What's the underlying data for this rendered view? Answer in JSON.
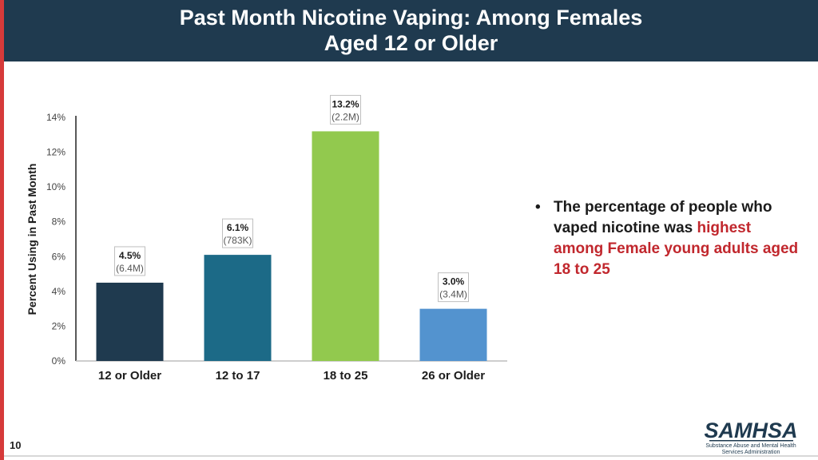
{
  "header": {
    "title_line1": "Past Month Nicotine Vaping: Among Females",
    "title_line2": "Aged 12 or Older"
  },
  "chart_data": {
    "type": "bar",
    "categories": [
      "12 or Older",
      "12 to 17",
      "18 to 25",
      "26 or Older"
    ],
    "values": [
      4.5,
      6.1,
      13.2,
      3.0
    ],
    "value_labels": [
      "4.5%",
      "6.1%",
      "13.2%",
      "3.0%"
    ],
    "count_labels": [
      "(6.4M)",
      "(783K)",
      "(2.2M)",
      "(3.4M)"
    ],
    "colors": [
      "#1f3a4f",
      "#1c6a87",
      "#92c94e",
      "#5393cf"
    ],
    "ylabel": "Percent Using in Past Month",
    "xlabel": "",
    "ylim": [
      0,
      14
    ],
    "yticks": [
      0,
      2,
      4,
      6,
      8,
      10,
      12,
      14
    ],
    "ytick_labels": [
      "0%",
      "2%",
      "4%",
      "6%",
      "8%",
      "10%",
      "12%",
      "14%"
    ],
    "grid": false,
    "legend": "none"
  },
  "bullet": {
    "symbol": "•",
    "text_before": "The percentage of people who vaped nicotine was",
    "highlight": "highest among Female young adults aged 18 to 25"
  },
  "footer": {
    "page_number": "10",
    "logo_name": "SAMHSA",
    "logo_sub_line1": "Substance Abuse and Mental Health",
    "logo_sub_line2": "Services Administration"
  }
}
